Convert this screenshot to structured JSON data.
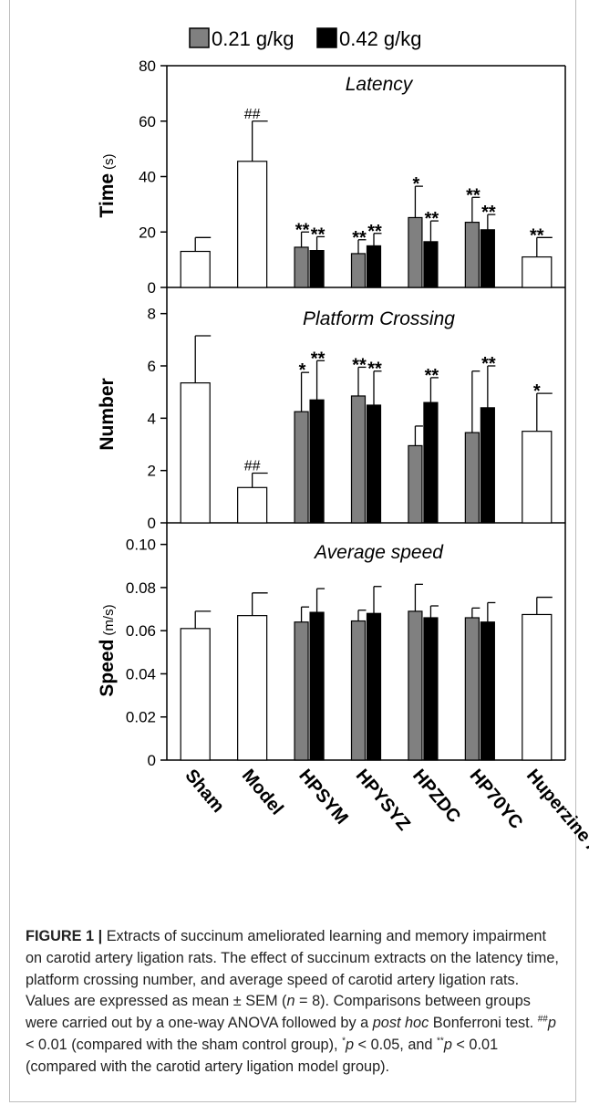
{
  "chart_data": {
    "type": "bar",
    "categories": [
      "Sham",
      "Model",
      "HPSYM",
      "HPYSYZ",
      "HPZDC",
      "HP70YC",
      "Huperzine A"
    ],
    "legend": {
      "position": "top",
      "entries": [
        {
          "label": "0.21 g/kg",
          "color": "#808080"
        },
        {
          "label": "0.42 g/kg",
          "color": "#000000"
        }
      ]
    },
    "panels": [
      {
        "title": "Latency",
        "ylabel": "Time",
        "yunit": "(s)",
        "ylim": [
          0,
          80
        ],
        "yticks": [
          "0",
          "20",
          "40",
          "60",
          "80"
        ],
        "groups": [
          {
            "bars": [
              {
                "series": "single",
                "value": 13,
                "sem": 5,
                "label": ""
              }
            ]
          },
          {
            "bars": [
              {
                "series": "single",
                "value": 45.5,
                "sem": 14.5,
                "label": "##"
              }
            ]
          },
          {
            "bars": [
              {
                "series": "0.21 g/kg",
                "value": 14.5,
                "sem": 5.5,
                "label": "**"
              },
              {
                "series": "0.42 g/kg",
                "value": 13.3,
                "sem": 5,
                "label": "**"
              }
            ]
          },
          {
            "bars": [
              {
                "series": "0.21 g/kg",
                "value": 12.2,
                "sem": 5,
                "label": "**"
              },
              {
                "series": "0.42 g/kg",
                "value": 15,
                "sem": 4.5,
                "label": "**"
              }
            ]
          },
          {
            "bars": [
              {
                "series": "0.21 g/kg",
                "value": 25.2,
                "sem": 11.3,
                "label": "*"
              },
              {
                "series": "0.42 g/kg",
                "value": 16.5,
                "sem": 7.5,
                "label": "**"
              }
            ]
          },
          {
            "bars": [
              {
                "series": "0.21 g/kg",
                "value": 23.5,
                "sem": 9,
                "label": "**"
              },
              {
                "series": "0.42 g/kg",
                "value": 20.8,
                "sem": 5.5,
                "label": "**"
              }
            ]
          },
          {
            "bars": [
              {
                "series": "single",
                "value": 11,
                "sem": 7,
                "label": "**"
              }
            ]
          }
        ]
      },
      {
        "title": "Platform Crossing",
        "ylabel": "Number",
        "yunit": "",
        "ylim": [
          0,
          9
        ],
        "yticks": [
          "0",
          "2",
          "4",
          "6",
          "8"
        ],
        "groups": [
          {
            "bars": [
              {
                "series": "single",
                "value": 5.35,
                "sem": 1.8,
                "label": ""
              }
            ]
          },
          {
            "bars": [
              {
                "series": "single",
                "value": 1.35,
                "sem": 0.55,
                "label": "##"
              }
            ]
          },
          {
            "bars": [
              {
                "series": "0.21 g/kg",
                "value": 4.25,
                "sem": 1.5,
                "label": "*"
              },
              {
                "series": "0.42 g/kg",
                "value": 4.7,
                "sem": 1.5,
                "label": "**"
              }
            ]
          },
          {
            "bars": [
              {
                "series": "0.21 g/kg",
                "value": 4.85,
                "sem": 1.1,
                "label": "**"
              },
              {
                "series": "0.42 g/kg",
                "value": 4.5,
                "sem": 1.3,
                "label": "**"
              }
            ]
          },
          {
            "bars": [
              {
                "series": "0.21 g/kg",
                "value": 2.95,
                "sem": 0.75,
                "label": ""
              },
              {
                "series": "0.42 g/kg",
                "value": 4.6,
                "sem": 0.95,
                "label": "**"
              }
            ]
          },
          {
            "bars": [
              {
                "series": "0.21 g/kg",
                "value": 3.45,
                "sem": 2.35,
                "label": ""
              },
              {
                "series": "0.42 g/kg",
                "value": 4.4,
                "sem": 1.6,
                "label": "**"
              }
            ]
          },
          {
            "bars": [
              {
                "series": "single",
                "value": 3.5,
                "sem": 1.45,
                "label": "*"
              }
            ]
          }
        ]
      },
      {
        "title": "Average speed",
        "ylabel": "Speed",
        "yunit": "(m/s)",
        "ylim": [
          0,
          0.11
        ],
        "yticks": [
          "0",
          "0.02",
          "0.04",
          "0.06",
          "0.08",
          "0.10"
        ],
        "groups": [
          {
            "bars": [
              {
                "series": "single",
                "value": 0.061,
                "sem": 0.008,
                "label": ""
              }
            ]
          },
          {
            "bars": [
              {
                "series": "single",
                "value": 0.067,
                "sem": 0.0105,
                "label": ""
              }
            ]
          },
          {
            "bars": [
              {
                "series": "0.21 g/kg",
                "value": 0.064,
                "sem": 0.007,
                "label": ""
              },
              {
                "series": "0.42 g/kg",
                "value": 0.0685,
                "sem": 0.011,
                "label": ""
              }
            ]
          },
          {
            "bars": [
              {
                "series": "0.21 g/kg",
                "value": 0.0645,
                "sem": 0.005,
                "label": ""
              },
              {
                "series": "0.42 g/kg",
                "value": 0.068,
                "sem": 0.0125,
                "label": ""
              }
            ]
          },
          {
            "bars": [
              {
                "series": "0.21 g/kg",
                "value": 0.069,
                "sem": 0.0125,
                "label": ""
              },
              {
                "series": "0.42 g/kg",
                "value": 0.066,
                "sem": 0.0055,
                "label": ""
              }
            ]
          },
          {
            "bars": [
              {
                "series": "0.21 g/kg",
                "value": 0.066,
                "sem": 0.0045,
                "label": ""
              },
              {
                "series": "0.42 g/kg",
                "value": 0.064,
                "sem": 0.009,
                "label": ""
              }
            ]
          },
          {
            "bars": [
              {
                "series": "single",
                "value": 0.0675,
                "sem": 0.008,
                "label": ""
              }
            ]
          }
        ]
      }
    ]
  },
  "caption": {
    "label": "FIGURE 1 |",
    "p1": " Extracts of succinum ameliorated learning and memory impairment on carotid artery ligation rats. The effect of succinum extracts on the latency time, platform crossing number, and average speed of carotid artery ligation rats. Values are expressed as mean ± SEM (",
    "n_var": "n",
    "p2": " = 8). Comparisons between groups were carried out by a one-way ANOVA followed by a ",
    "posthoc": "post hoc",
    "p3": " Bonferroni test. ",
    "sup_hash": "##",
    "p_var1": "p",
    "p4": " < 0.01 (compared with the sham control group), ",
    "sup_star1": "*",
    "p_var2": "p",
    "p5": " < 0.05, and ",
    "sup_star2": "**",
    "p_var3": "p",
    "p6": " < 0.01 (compared with the carotid artery ligation model group)."
  }
}
